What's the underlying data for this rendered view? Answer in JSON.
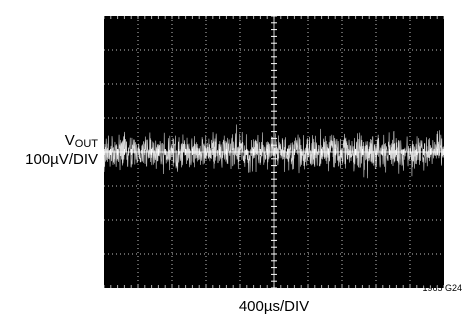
{
  "chart_data": {
    "type": "line",
    "ylabel_main": "V",
    "ylabel_sub": "OUT",
    "ylabel_scale": "100µV/DIV",
    "xlabel": "400µs/DIV",
    "figure_id": "1965 G24",
    "grid": true,
    "divisions": {
      "x": 10,
      "y": 8
    },
    "series": [
      {
        "description_free": true,
        "center_div": 0.0,
        "peak_to_peak_div": 1.4,
        "rms_div": 0.25
      }
    ],
    "colors": {
      "background": "#000000",
      "trace": "#ffffff",
      "grid": "#ffffff"
    }
  }
}
